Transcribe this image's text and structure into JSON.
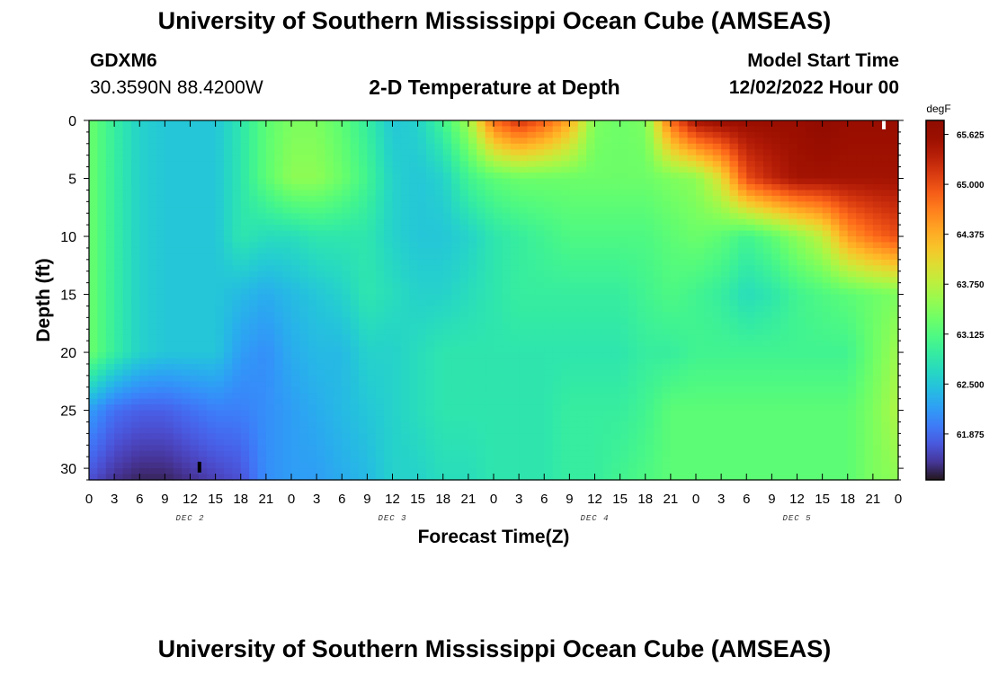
{
  "header": {
    "title": "University of Southern Mississippi Ocean Cube (AMSEAS)",
    "station": "GDXM6",
    "coordinates": "30.3590N  88.4200W",
    "plot_title": "2-D Temperature at Depth",
    "model_start_label": "Model Start Time",
    "model_start_value": "12/02/2022 Hour 00"
  },
  "footer": {
    "title": "University of Southern Mississippi Ocean Cube (AMSEAS)"
  },
  "chart_data": {
    "type": "heatmap",
    "xlabel": "Forecast Time(Z)",
    "ylabel": "Depth (ft)",
    "x_range_hours": [
      0,
      96
    ],
    "x_tick_labels": [
      "0",
      "3",
      "6",
      "9",
      "12",
      "15",
      "18",
      "21",
      "0",
      "3",
      "6",
      "9",
      "12",
      "15",
      "18",
      "21",
      "0",
      "3",
      "6",
      "9",
      "12",
      "15",
      "18",
      "21",
      "0",
      "3",
      "6",
      "9",
      "12",
      "15",
      "18",
      "21",
      "0"
    ],
    "day_labels": [
      "DEC 2",
      "DEC 3",
      "DEC 4",
      "DEC 5"
    ],
    "y_range": [
      0,
      31
    ],
    "y_reversed": true,
    "y_ticks": [
      0,
      5,
      10,
      15,
      20,
      25,
      30
    ],
    "colorbar": {
      "label": "degF",
      "range": [
        61.3,
        65.8
      ],
      "tick_labels": [
        "65.625",
        "65.000",
        "64.375",
        "63.750",
        "63.125",
        "62.500",
        "61.875"
      ],
      "tick_values": [
        65.625,
        65.0,
        64.375,
        63.75,
        63.125,
        62.5,
        61.875
      ],
      "colormap": "turbo"
    },
    "grid_hours": [
      0,
      3,
      6,
      9,
      12,
      15,
      18,
      21,
      24,
      27,
      30,
      33,
      36,
      39,
      42,
      45,
      48,
      51,
      54,
      57,
      60,
      63,
      66,
      69,
      72,
      75,
      78,
      81,
      84,
      87,
      90,
      93,
      96
    ],
    "grid_depths_ft": [
      0,
      5,
      10,
      15,
      20,
      25,
      31
    ],
    "values_degF": [
      [
        63.3,
        62.9,
        62.6,
        62.5,
        62.5,
        62.5,
        62.8,
        63.2,
        63.4,
        63.4,
        63.2,
        62.9,
        62.5,
        62.6,
        63.0,
        63.6,
        64.8,
        65.2,
        64.9,
        64.4,
        63.4,
        63.3,
        63.4,
        64.8,
        65.5,
        65.6,
        65.6,
        65.6,
        65.6,
        65.7,
        65.6,
        65.6,
        65.6
      ],
      [
        63.3,
        62.9,
        62.6,
        62.5,
        62.5,
        62.5,
        62.8,
        63.2,
        63.5,
        63.5,
        63.3,
        63.0,
        62.6,
        62.5,
        62.6,
        63.0,
        63.2,
        63.3,
        63.3,
        63.3,
        63.3,
        63.3,
        63.3,
        63.4,
        63.5,
        64.0,
        65.0,
        65.3,
        65.5,
        65.5,
        65.5,
        65.5,
        65.5
      ],
      [
        63.3,
        62.9,
        62.6,
        62.5,
        62.5,
        62.5,
        62.8,
        62.7,
        62.7,
        62.8,
        62.8,
        62.8,
        62.6,
        62.5,
        62.5,
        62.6,
        62.8,
        62.9,
        63.0,
        63.1,
        63.1,
        63.1,
        63.1,
        63.2,
        63.3,
        63.2,
        63.0,
        63.2,
        63.5,
        63.8,
        64.5,
        64.8,
        65.0
      ],
      [
        63.3,
        62.9,
        62.6,
        62.5,
        62.5,
        62.5,
        62.4,
        62.3,
        62.4,
        62.5,
        62.6,
        62.8,
        62.7,
        62.6,
        62.6,
        62.7,
        62.8,
        62.9,
        62.9,
        62.9,
        62.9,
        62.9,
        63.0,
        63.1,
        63.0,
        62.9,
        62.7,
        62.8,
        63.0,
        63.1,
        63.2,
        63.3,
        63.4
      ],
      [
        63.3,
        62.9,
        62.6,
        62.5,
        62.5,
        62.5,
        62.2,
        62.1,
        62.3,
        62.4,
        62.4,
        62.6,
        62.6,
        62.7,
        62.8,
        62.8,
        62.8,
        62.8,
        62.8,
        62.8,
        62.8,
        62.8,
        62.9,
        62.9,
        63.0,
        63.0,
        63.0,
        63.0,
        63.0,
        63.0,
        63.0,
        63.3,
        63.6
      ],
      [
        62.2,
        61.9,
        61.8,
        61.8,
        61.9,
        62.0,
        62.0,
        62.1,
        62.2,
        62.3,
        62.4,
        62.5,
        62.6,
        62.7,
        62.8,
        62.8,
        62.8,
        62.8,
        62.8,
        62.9,
        62.9,
        62.9,
        63.0,
        63.2,
        63.2,
        63.2,
        63.2,
        63.2,
        63.2,
        63.2,
        63.2,
        63.4,
        63.7
      ],
      [
        61.7,
        61.5,
        61.4,
        61.4,
        61.5,
        61.6,
        61.7,
        62.1,
        62.2,
        62.2,
        62.3,
        62.4,
        62.6,
        62.6,
        62.7,
        62.7,
        62.8,
        62.8,
        62.8,
        62.9,
        62.9,
        63.0,
        63.1,
        63.2,
        63.2,
        63.2,
        63.2,
        63.2,
        63.2,
        63.2,
        63.2,
        63.4,
        63.5
      ]
    ],
    "markers": [
      {
        "hour": 13.1,
        "depth_ft": 29.9,
        "color": "#000000"
      },
      {
        "hour": 94.3,
        "depth_ft": 0.3,
        "color": "#ffffff"
      }
    ]
  }
}
